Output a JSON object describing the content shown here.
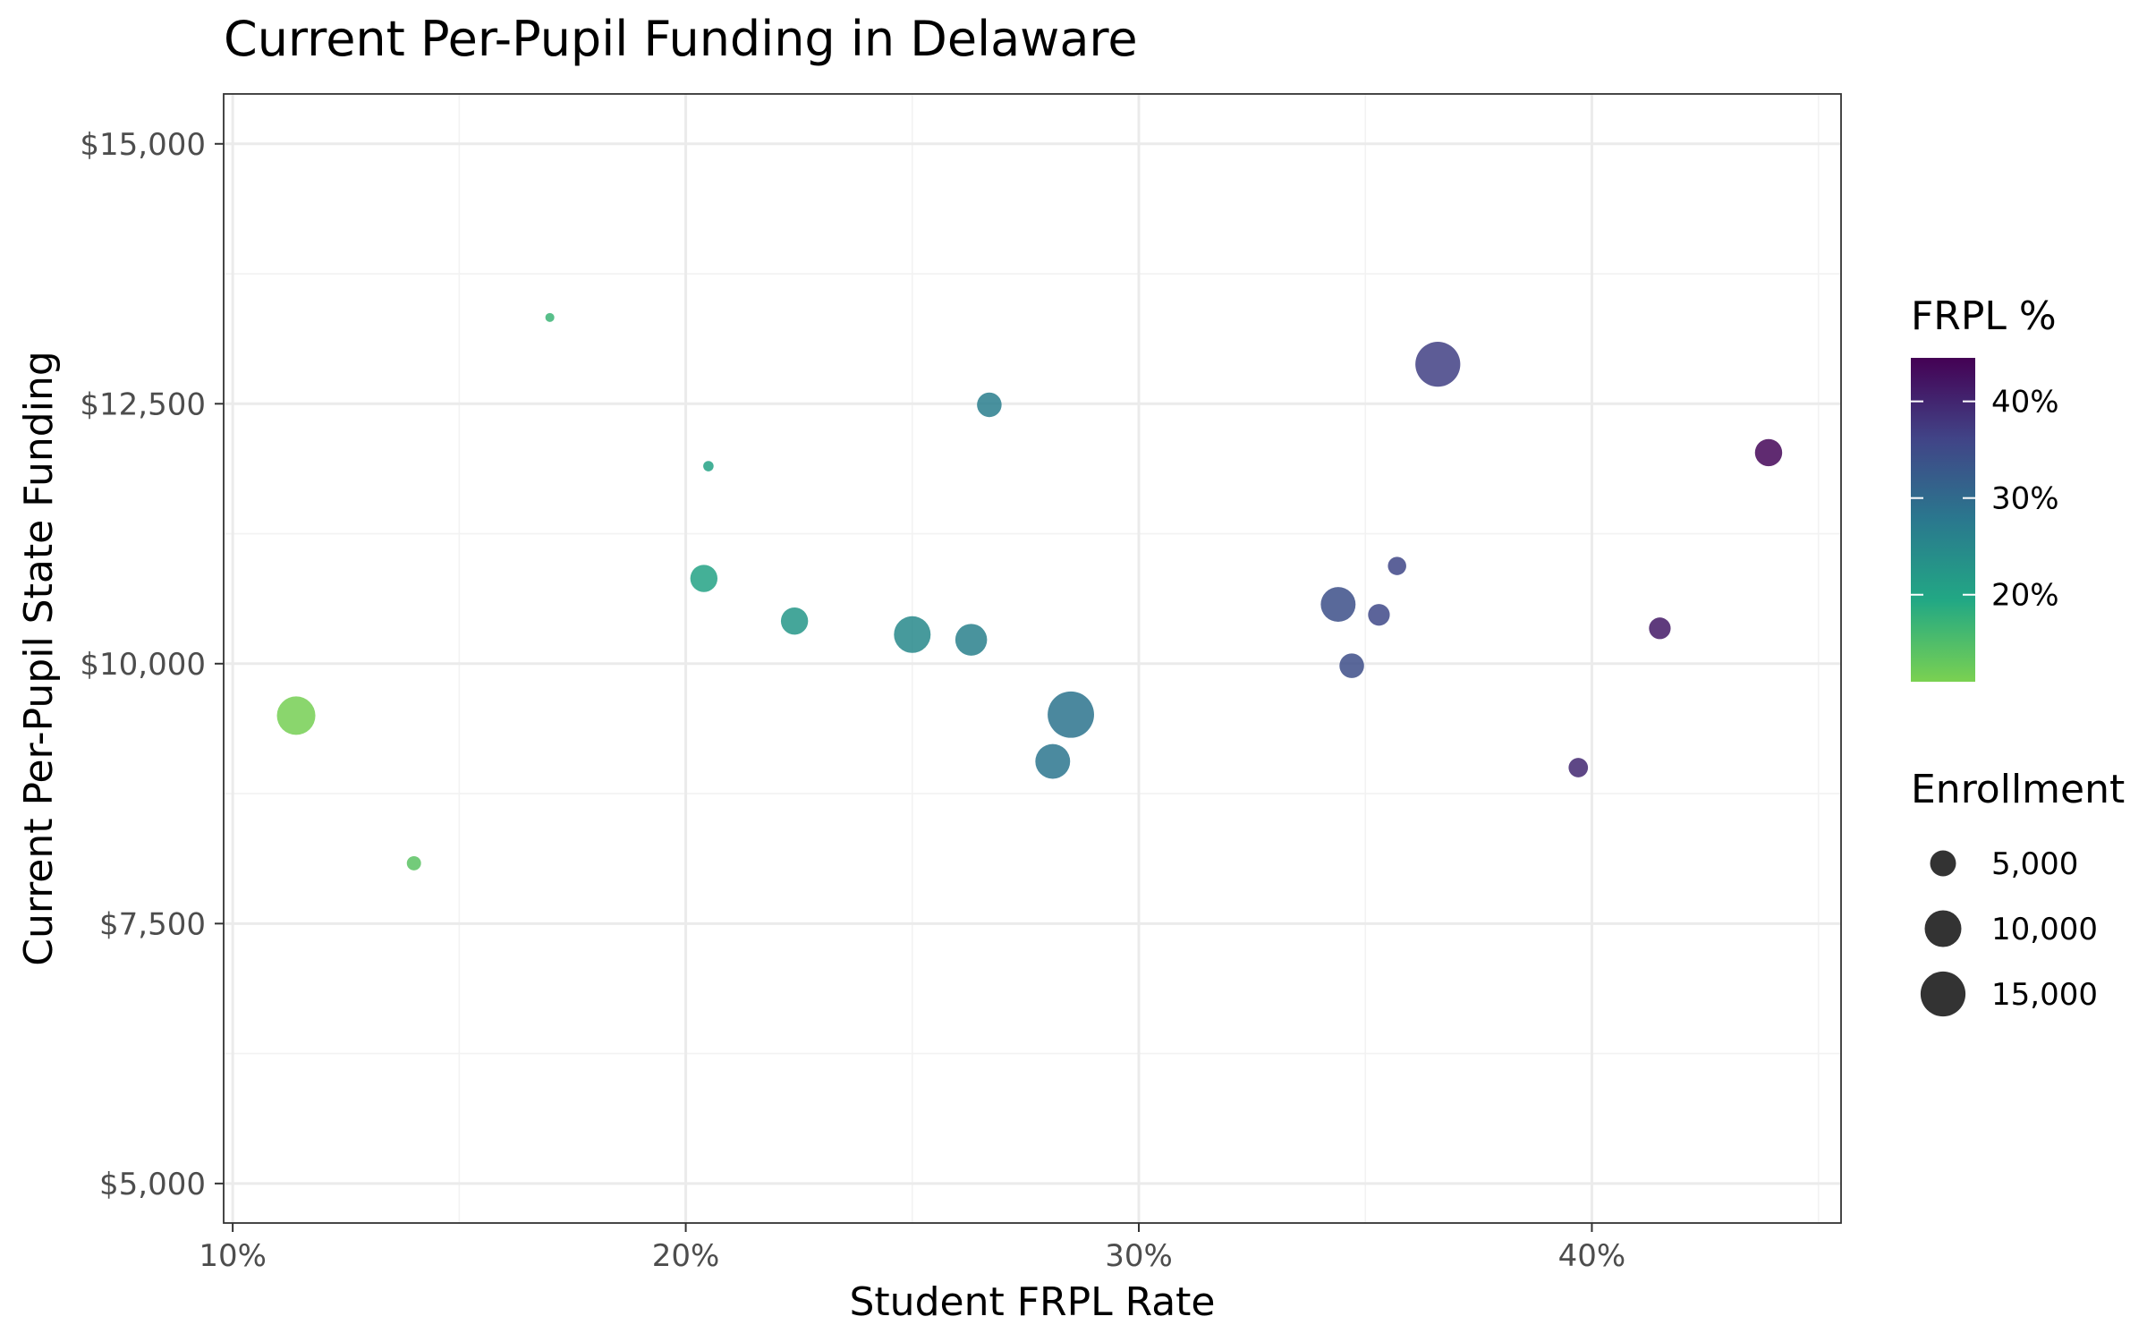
{
  "chart_data": {
    "type": "scatter",
    "title": "Current Per-Pupil Funding in Delaware",
    "xlabel": "Student FRPL Rate",
    "ylabel": "Current Per-Pupil State Funding",
    "xlim": [
      0.098,
      0.455
    ],
    "ylim": [
      4620,
      15480
    ],
    "x_major_ticks": [
      {
        "value": 0.1,
        "label": "10%"
      },
      {
        "value": 0.2,
        "label": "20%"
      },
      {
        "value": 0.3,
        "label": "30%"
      },
      {
        "value": 0.4,
        "label": "40%"
      }
    ],
    "x_minor_ticks": [
      0.15,
      0.25,
      0.35,
      0.45
    ],
    "y_major_ticks": [
      {
        "value": 5000,
        "label": "$5,000"
      },
      {
        "value": 7500,
        "label": "$7,500"
      },
      {
        "value": 10000,
        "label": "$10,000"
      },
      {
        "value": 12500,
        "label": "$12,500"
      },
      {
        "value": 15000,
        "label": "$15,000"
      }
    ],
    "y_minor_ticks": [
      6250,
      8750,
      11250,
      13750
    ],
    "grid": true,
    "points": [
      {
        "x": 0.114,
        "y": 9500,
        "size": 11000
      },
      {
        "x": 0.14,
        "y": 8080,
        "size": 1500
      },
      {
        "x": 0.17,
        "y": 13330,
        "size": 600
      },
      {
        "x": 0.204,
        "y": 10820,
        "size": 5500
      },
      {
        "x": 0.205,
        "y": 11900,
        "size": 800
      },
      {
        "x": 0.224,
        "y": 10410,
        "size": 5500
      },
      {
        "x": 0.25,
        "y": 10280,
        "size": 10000
      },
      {
        "x": 0.263,
        "y": 10230,
        "size": 7500
      },
      {
        "x": 0.267,
        "y": 12490,
        "size": 4500
      },
      {
        "x": 0.281,
        "y": 9060,
        "size": 9000
      },
      {
        "x": 0.285,
        "y": 9510,
        "size": 16000
      },
      {
        "x": 0.344,
        "y": 10570,
        "size": 9000
      },
      {
        "x": 0.347,
        "y": 9980,
        "size": 4500
      },
      {
        "x": 0.353,
        "y": 10470,
        "size": 3500
      },
      {
        "x": 0.357,
        "y": 10940,
        "size": 2500
      },
      {
        "x": 0.366,
        "y": 12880,
        "size": 15000
      },
      {
        "x": 0.397,
        "y": 9000,
        "size": 2800
      },
      {
        "x": 0.415,
        "y": 10340,
        "size": 3500
      },
      {
        "x": 0.439,
        "y": 12030,
        "size": 5500
      }
    ],
    "color_legend": {
      "title": "FRPL %",
      "range": [
        0.11,
        0.445
      ],
      "ticks": [
        {
          "value": 0.2,
          "label": "20%"
        },
        {
          "value": 0.3,
          "label": "30%"
        },
        {
          "value": 0.4,
          "label": "40%"
        }
      ],
      "colors": [
        "#7ad151",
        "#22a884",
        "#2a788e",
        "#414487",
        "#440154"
      ]
    },
    "size_legend": {
      "title": "Enrollment",
      "entries": [
        {
          "value": 5000,
          "label": "5,000"
        },
        {
          "value": 10000,
          "label": "10,000"
        },
        {
          "value": 15000,
          "label": "15,000"
        }
      ]
    },
    "legend_position": "right"
  }
}
